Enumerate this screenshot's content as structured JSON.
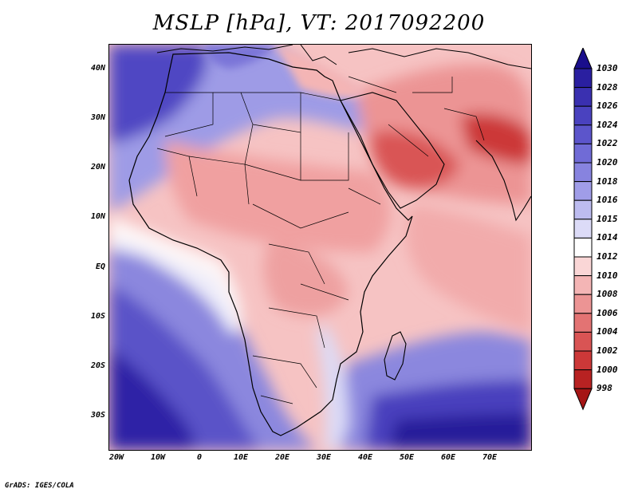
{
  "title": "MSLP [hPa], VT: 2017092200",
  "credit": "GrADS: IGES/COLA",
  "map": {
    "lat_ticks": [
      "40N",
      "30N",
      "20N",
      "10N",
      "EQ",
      "10S",
      "20S",
      "30S"
    ],
    "lon_ticks": [
      "20W",
      "10W",
      "0",
      "10E",
      "20E",
      "30E",
      "40E",
      "50E",
      "60E",
      "70E"
    ],
    "lat_range": [
      -37,
      45
    ],
    "lon_range": [
      -22,
      80
    ]
  },
  "colorbar": {
    "labels": [
      "1030",
      "1028",
      "1026",
      "1024",
      "1022",
      "1020",
      "1018",
      "1016",
      "1015",
      "1014",
      "1012",
      "1010",
      "1008",
      "1006",
      "1004",
      "1002",
      "1000",
      "998"
    ],
    "colors": [
      "#1a0e8c",
      "#2a1fa0",
      "#3a30b0",
      "#4a42bf",
      "#5c55cb",
      "#706bd6",
      "#8783df",
      "#a09de8",
      "#bdbcf0",
      "#dcdbf7",
      "#ffffff",
      "#fad6d6",
      "#f4b5b5",
      "#ec9494",
      "#e37373",
      "#d95454",
      "#cc3838",
      "#b82222",
      "#a51515"
    ]
  }
}
